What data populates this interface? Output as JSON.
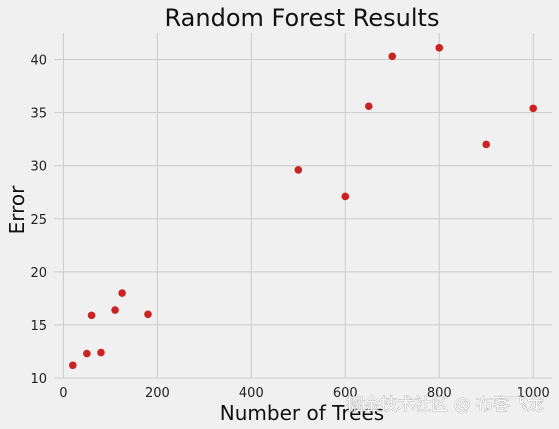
{
  "chart_data": {
    "type": "scatter",
    "title": "Random Forest Results",
    "xlabel": "Number of Trees",
    "ylabel": "Error",
    "x": [
      20,
      50,
      60,
      80,
      110,
      125,
      180,
      500,
      600,
      650,
      700,
      800,
      900,
      1000
    ],
    "y": [
      11.2,
      12.3,
      15.9,
      12.4,
      16.4,
      18.0,
      16.0,
      29.6,
      27.1,
      35.6,
      40.3,
      41.1,
      32.0,
      35.4
    ],
    "xlim": [
      -20,
      1040
    ],
    "ylim": [
      10,
      42.5
    ],
    "xticks": [
      0,
      200,
      400,
      600,
      800,
      1000
    ],
    "yticks": [
      10,
      15,
      20,
      25,
      30,
      35,
      40
    ],
    "grid": true,
    "point_color": "#cc2222",
    "background_color": "#f0f0f0",
    "grid_color": "#cbcbcb"
  },
  "watermark": {
    "text": "掘金技术社区 @ 布客飞龙"
  }
}
